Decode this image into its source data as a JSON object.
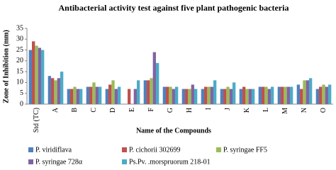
{
  "chart_data": {
    "type": "bar",
    "title": "Antibacterial activity test against five plant pathogenic bacteria",
    "x_label": "Name of the Compounds",
    "y_label": "Zone of Inhibition (mm)",
    "categories": [
      "Std (TC)",
      "A",
      "B",
      "C",
      "D",
      "E",
      "F",
      "G",
      "H",
      "I",
      "J",
      "K",
      "L",
      "M",
      "N",
      "O"
    ],
    "series": [
      {
        "name": "P. viridiflava",
        "color": "#4f81bd",
        "values": [
          25,
          13,
          7,
          8,
          7,
          0,
          11,
          8,
          7,
          7,
          7,
          7,
          8,
          8,
          9,
          7
        ]
      },
      {
        "name": "P. cichorii 302699",
        "color": "#c0504d",
        "values": [
          29,
          12,
          7,
          8,
          9,
          7,
          11,
          8,
          7,
          8,
          7,
          8,
          8,
          8,
          7,
          8
        ]
      },
      {
        "name": "P. syringae FF5",
        "color": "#9bbb59",
        "values": [
          27,
          11,
          8,
          10,
          11,
          0,
          12,
          8,
          7,
          8,
          8,
          7,
          8,
          8,
          11,
          9
        ]
      },
      {
        "name": "P. syringae 728α",
        "color": "#8064a2",
        "values": [
          26,
          12,
          7,
          8,
          7,
          7,
          24,
          7,
          9,
          8,
          7,
          7,
          7,
          8,
          11,
          8
        ]
      },
      {
        "name": "Ps.Pv. .morspruorum 218-01",
        "color": "#4bacc6",
        "values": [
          25,
          15,
          7,
          8,
          8,
          11,
          19,
          8,
          7,
          11,
          10,
          7,
          8,
          8,
          12,
          9
        ]
      }
    ],
    "ylim": [
      0,
      35
    ],
    "yticks": [
      0,
      5,
      10,
      15,
      20,
      25,
      30,
      35
    ]
  }
}
